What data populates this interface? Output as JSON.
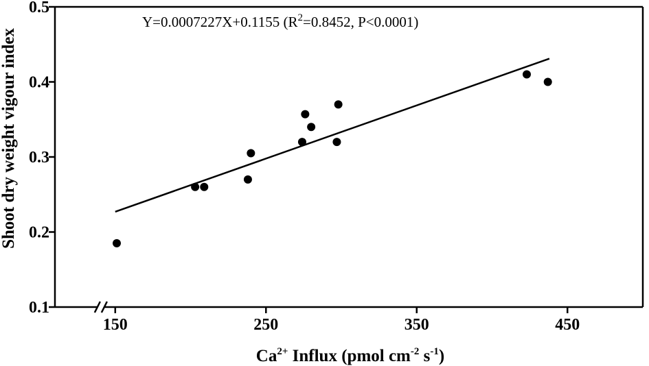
{
  "chart_data": {
    "type": "scatter",
    "title": "",
    "xlabel": {
      "prefix": "Ca",
      "prefix_sup": "2+",
      "middle": " Influx (pmol cm",
      "unit_sup1": "-2",
      "space": " s",
      "unit_sup2": "-1",
      "suffix": ")"
    },
    "ylabel": "Shoot dry weight vigour index",
    "xlim": [
      110,
      500
    ],
    "ylim": [
      0.1,
      0.5
    ],
    "x_axis_break": true,
    "x_ticks": [
      150,
      250,
      350,
      450
    ],
    "x_tick_labels": [
      "150",
      "250",
      "350",
      "450"
    ],
    "y_ticks": [
      0.1,
      0.2,
      0.3,
      0.4,
      0.5
    ],
    "y_tick_labels": [
      "0.1",
      "0.2",
      "0.3",
      "0.4",
      "0.5"
    ],
    "grid": false,
    "series": [
      {
        "x": [
          151,
          203,
          209,
          238,
          240,
          274,
          276,
          280,
          297,
          298,
          423,
          437
        ],
        "y": [
          0.185,
          0.26,
          0.26,
          0.27,
          0.305,
          0.32,
          0.357,
          0.34,
          0.32,
          0.37,
          0.41,
          0.4
        ]
      }
    ],
    "fit_line": {
      "x": [
        150,
        438
      ],
      "y": [
        0.227,
        0.431
      ]
    },
    "annotation": {
      "part1": "Y=0.0007227X+0.1155 (R",
      "sup": "2",
      "part2": "=0.8452, P<0.0001)"
    }
  }
}
